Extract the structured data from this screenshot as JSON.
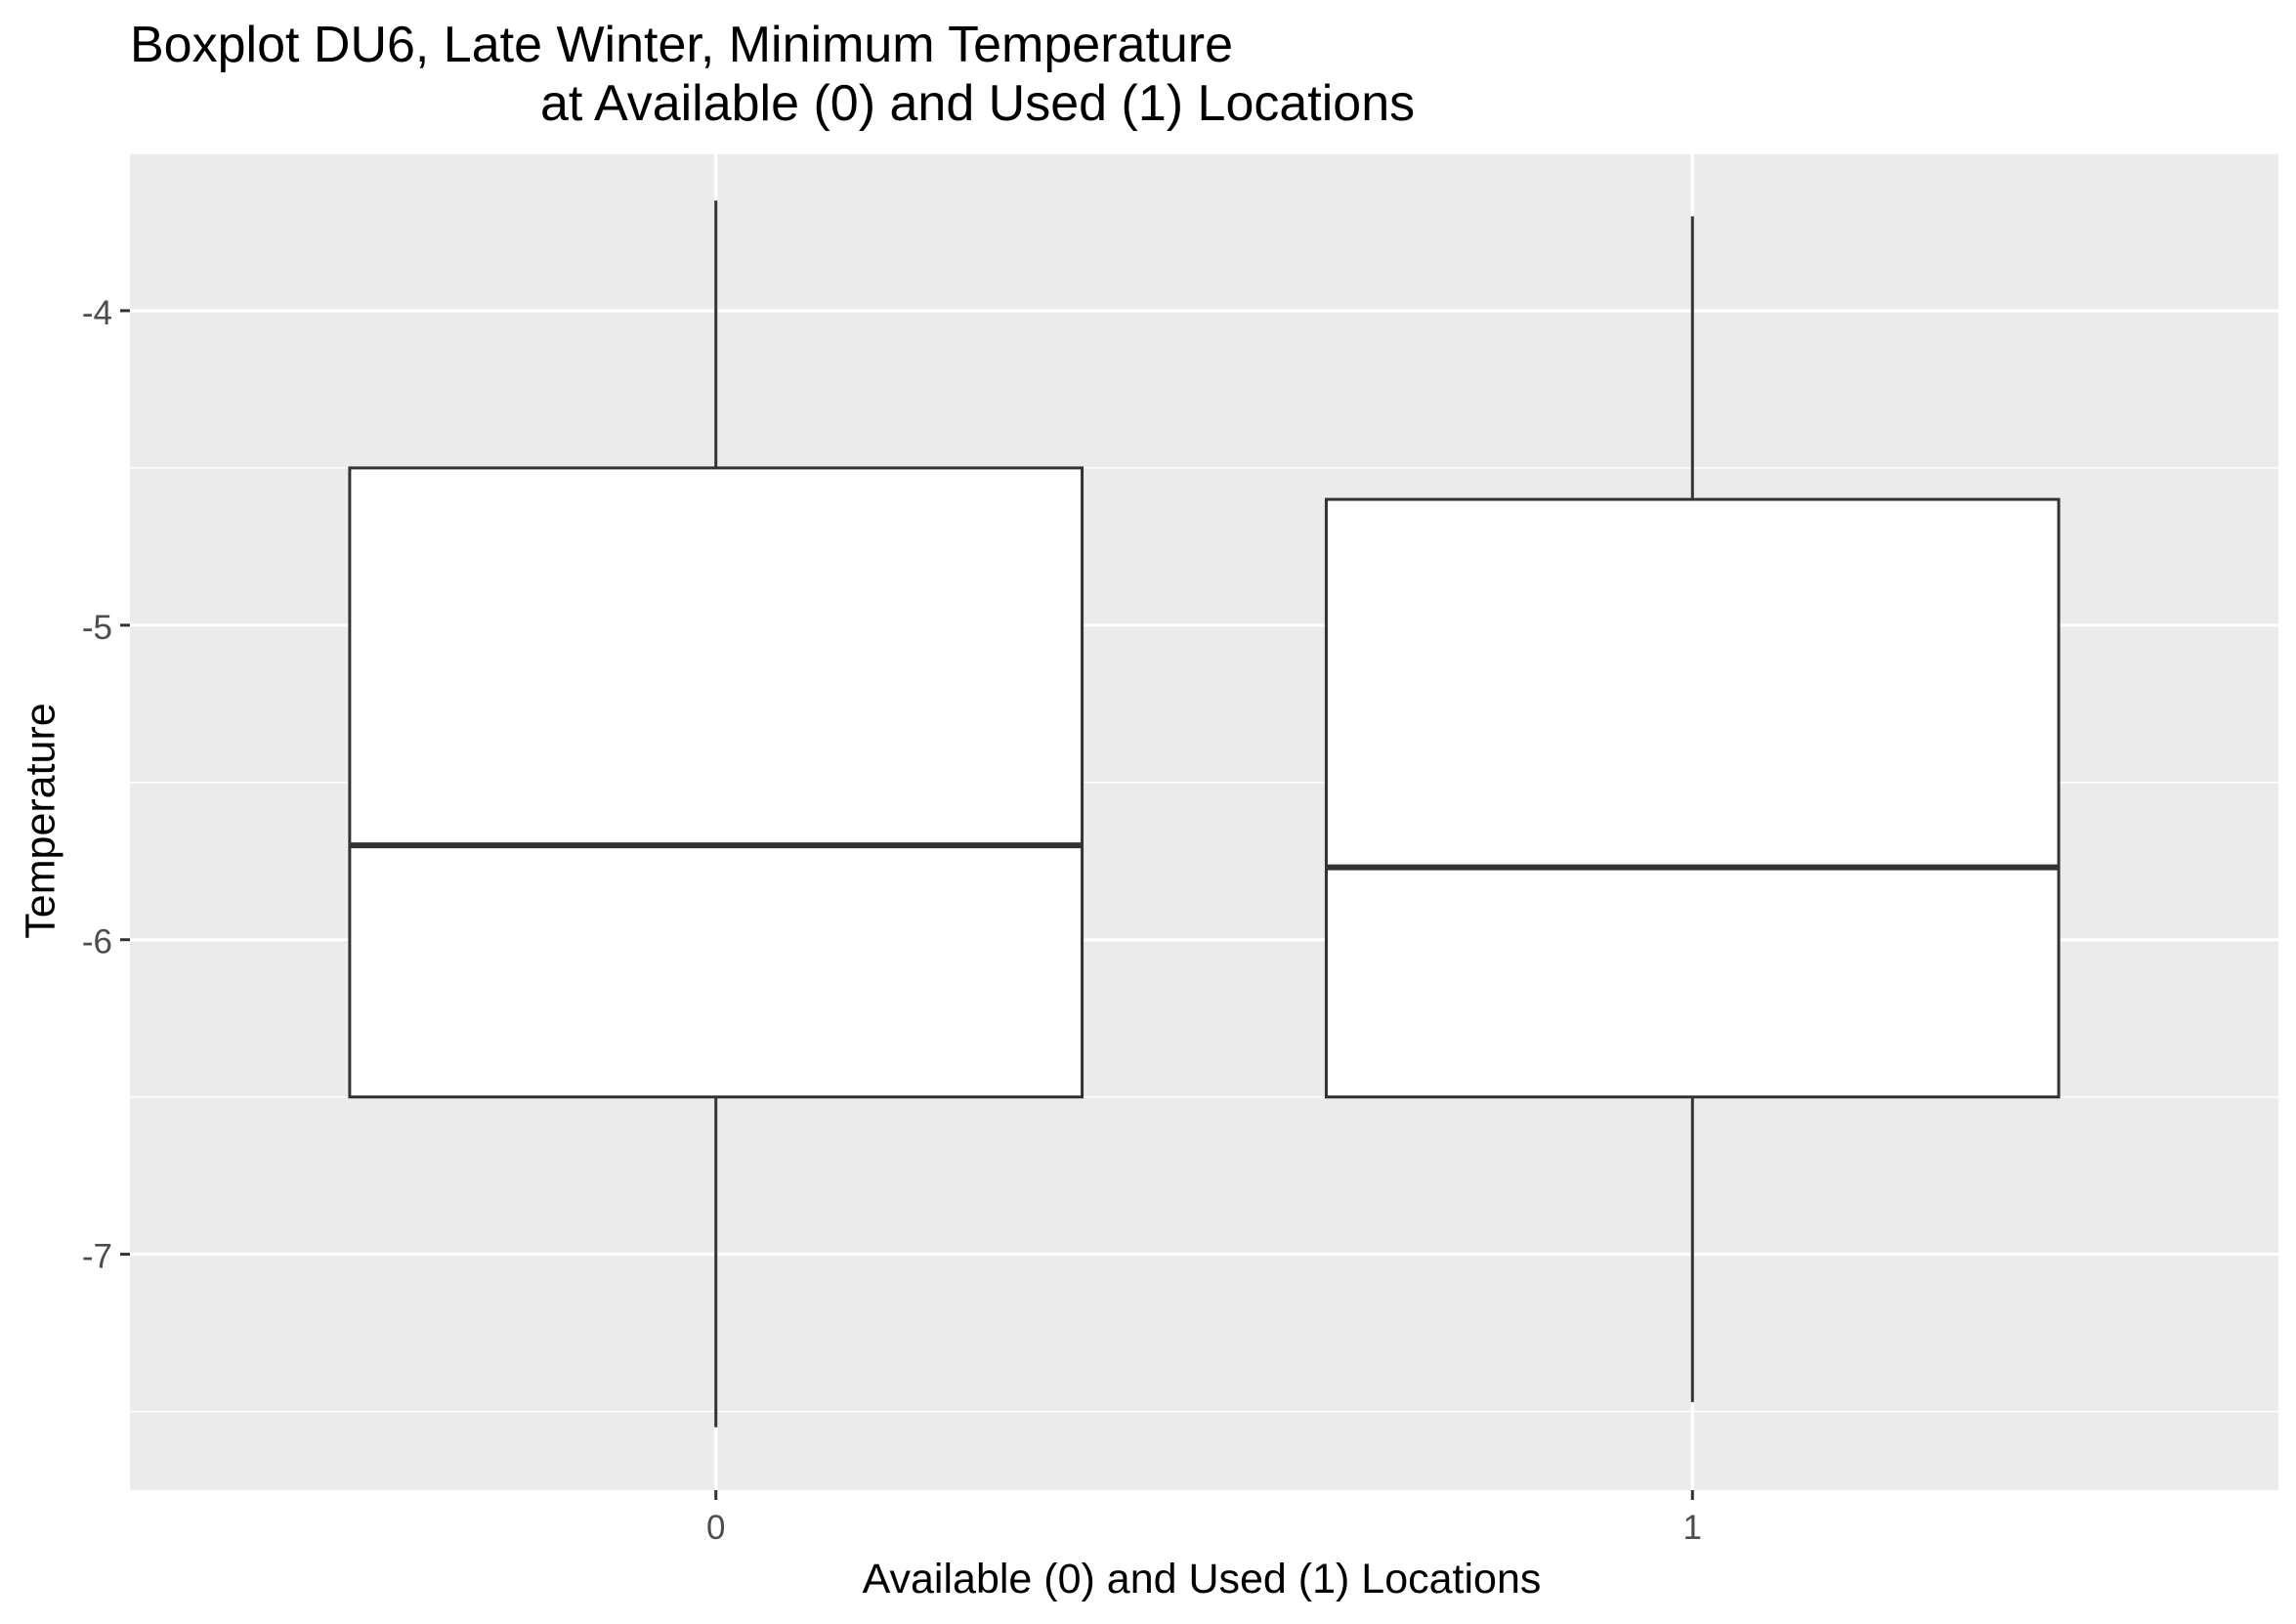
{
  "chart_data": {
    "type": "boxplot",
    "title_lines": [
      "Boxplot DU6, Late Winter, Minimum Temperature",
      "at Available (0) and Used (1) Locations"
    ],
    "xlabel": "Available (0) and Used (1) Locations",
    "ylabel": "Temperature",
    "categories": [
      "0",
      "1"
    ],
    "boxes": [
      {
        "category": "0",
        "whisker_low": -7.55,
        "q1": -6.5,
        "median": -5.7,
        "q3": -4.5,
        "whisker_high": -3.65
      },
      {
        "category": "1",
        "whisker_low": -7.47,
        "q1": -6.5,
        "median": -5.77,
        "q3": -4.6,
        "whisker_high": -3.7
      }
    ],
    "yticks": [
      -7,
      -6,
      -5,
      -4
    ],
    "ylim": [
      -7.75,
      -3.5
    ],
    "grid": true,
    "colors": {
      "panel_background": "#EBEBEB",
      "grid": "#FFFFFF",
      "box_fill": "#FFFFFF",
      "box_line": "#333333",
      "tick_text": "#4D4D4D",
      "tick_mark": "#333333"
    }
  }
}
